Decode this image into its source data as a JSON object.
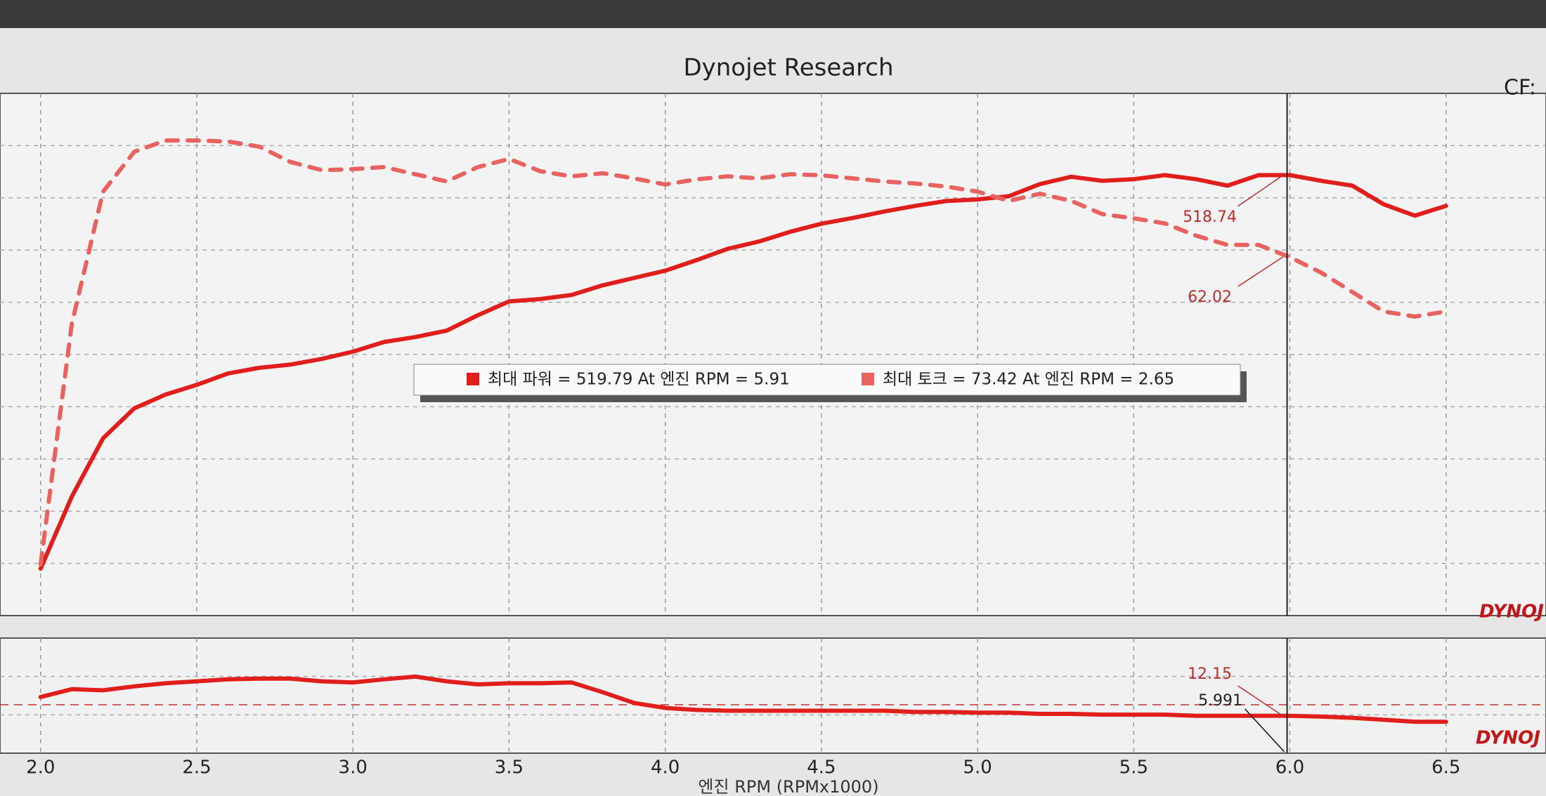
{
  "title": "Dynojet Research",
  "cf_label": "CF:",
  "watermark": "DYNOJ",
  "legend": [
    "최대 파워 = 519.79 At 엔진 RPM = 5.91",
    "최대 토크 = 73.42 At 엔진 RPM = 2.65"
  ],
  "chart_data": [
    {
      "type": "line",
      "x": [
        2.0,
        2.1,
        2.2,
        2.3,
        2.4,
        2.5,
        2.6,
        2.7,
        2.8,
        2.9,
        3.0,
        3.1,
        3.2,
        3.3,
        3.4,
        3.5,
        3.6,
        3.7,
        3.8,
        3.9,
        4.0,
        4.1,
        4.2,
        4.3,
        4.4,
        4.5,
        4.6,
        4.7,
        4.8,
        4.9,
        5.0,
        5.1,
        5.2,
        5.3,
        5.4,
        5.5,
        5.6,
        5.7,
        5.8,
        5.9,
        6.0,
        6.1,
        6.2,
        6.3,
        6.4,
        6.5
      ],
      "series": [
        {
          "color": "#e01e1c",
          "values": [
            33,
            122,
            194,
            231,
            248,
            260,
            274,
            281,
            285,
            292,
            301,
            313,
            319,
            327,
            346,
            363,
            366,
            371,
            383,
            392,
            401,
            414,
            428,
            437,
            449,
            459,
            466,
            474,
            481,
            487,
            489,
            493,
            508,
            517,
            512,
            514,
            519,
            514,
            506,
            519,
            519,
            512,
            506,
            483,
            469,
            481
          ]
        },
        {
          "color": "#e8625f",
          "dashed": true,
          "axis": "y2",
          "values": [
            32.0,
            55.5,
            68.4,
            72.3,
            73.4,
            73.4,
            73.3,
            72.8,
            71.3,
            70.5,
            70.6,
            70.8,
            70.1,
            69.4,
            70.8,
            71.6,
            70.4,
            69.9,
            70.2,
            69.7,
            69.1,
            69.6,
            69.9,
            69.7,
            70.1,
            70.0,
            69.7,
            69.4,
            69.2,
            68.9,
            68.4,
            67.5,
            68.2,
            67.5,
            66.2,
            65.8,
            65.3,
            64.1,
            63.2,
            63.2,
            62.0,
            60.5,
            58.6,
            56.7,
            56.2,
            56.7
          ]
        }
      ],
      "xlim": [
        1.87,
        6.82
      ],
      "xticks": [
        {
          "value": 2,
          "label": "2.0"
        },
        2.5,
        {
          "value": 3,
          "label": "3.0"
        },
        3.5,
        {
          "value": 4,
          "label": "4.0"
        },
        4.5,
        {
          "value": 5,
          "label": "5.0"
        },
        5.5,
        {
          "value": 6,
          "label": "6.0"
        },
        6.5
      ],
      "ylim": [
        -25,
        620
      ],
      "y2lim": [
        27,
        78
      ],
      "grid": true,
      "cursor": {
        "x": 5.991,
        "values": [
          518.74,
          62.02
        ]
      }
    },
    {
      "type": "line",
      "x": [
        2.0,
        2.1,
        2.2,
        2.3,
        2.4,
        2.5,
        2.6,
        2.7,
        2.8,
        2.9,
        3.0,
        3.1,
        3.2,
        3.3,
        3.4,
        3.5,
        3.6,
        3.7,
        3.8,
        3.9,
        4.0,
        4.1,
        4.2,
        4.3,
        4.4,
        4.5,
        4.6,
        4.7,
        4.8,
        4.9,
        5.0,
        5.1,
        5.2,
        5.3,
        5.4,
        5.5,
        5.6,
        5.7,
        5.8,
        5.9,
        6.0,
        6.1,
        6.2,
        6.3,
        6.4,
        6.5
      ],
      "series": [
        {
          "color": "#e01e1c",
          "values": [
            12.63,
            12.83,
            12.8,
            12.9,
            12.98,
            13.03,
            13.08,
            13.1,
            13.1,
            13.03,
            13.0,
            13.08,
            13.15,
            13.03,
            12.95,
            12.98,
            12.98,
            13.0,
            12.75,
            12.48,
            12.35,
            12.3,
            12.28,
            12.28,
            12.28,
            12.28,
            12.28,
            12.28,
            12.25,
            12.25,
            12.23,
            12.23,
            12.2,
            12.2,
            12.18,
            12.18,
            12.18,
            12.15,
            12.15,
            12.15,
            12.15,
            12.13,
            12.1,
            12.05,
            12.0,
            12.0
          ]
        }
      ],
      "xlim": [
        1.87,
        6.82
      ],
      "xticks": [
        {
          "value": 2,
          "label": "2.0"
        },
        2.5,
        {
          "value": 3,
          "label": "3.0"
        },
        3.5,
        {
          "value": 4,
          "label": "4.0"
        },
        4.5,
        {
          "value": 5,
          "label": "5.0"
        },
        5.5,
        {
          "value": 6,
          "label": "6.0"
        },
        6.5
      ],
      "ylim": [
        11.2,
        14.13
      ],
      "grid": true,
      "xlabel": "엔진 RPM  (RPMx1000)",
      "cursor": {
        "x": 5.991,
        "values": [
          12.15
        ]
      }
    }
  ]
}
